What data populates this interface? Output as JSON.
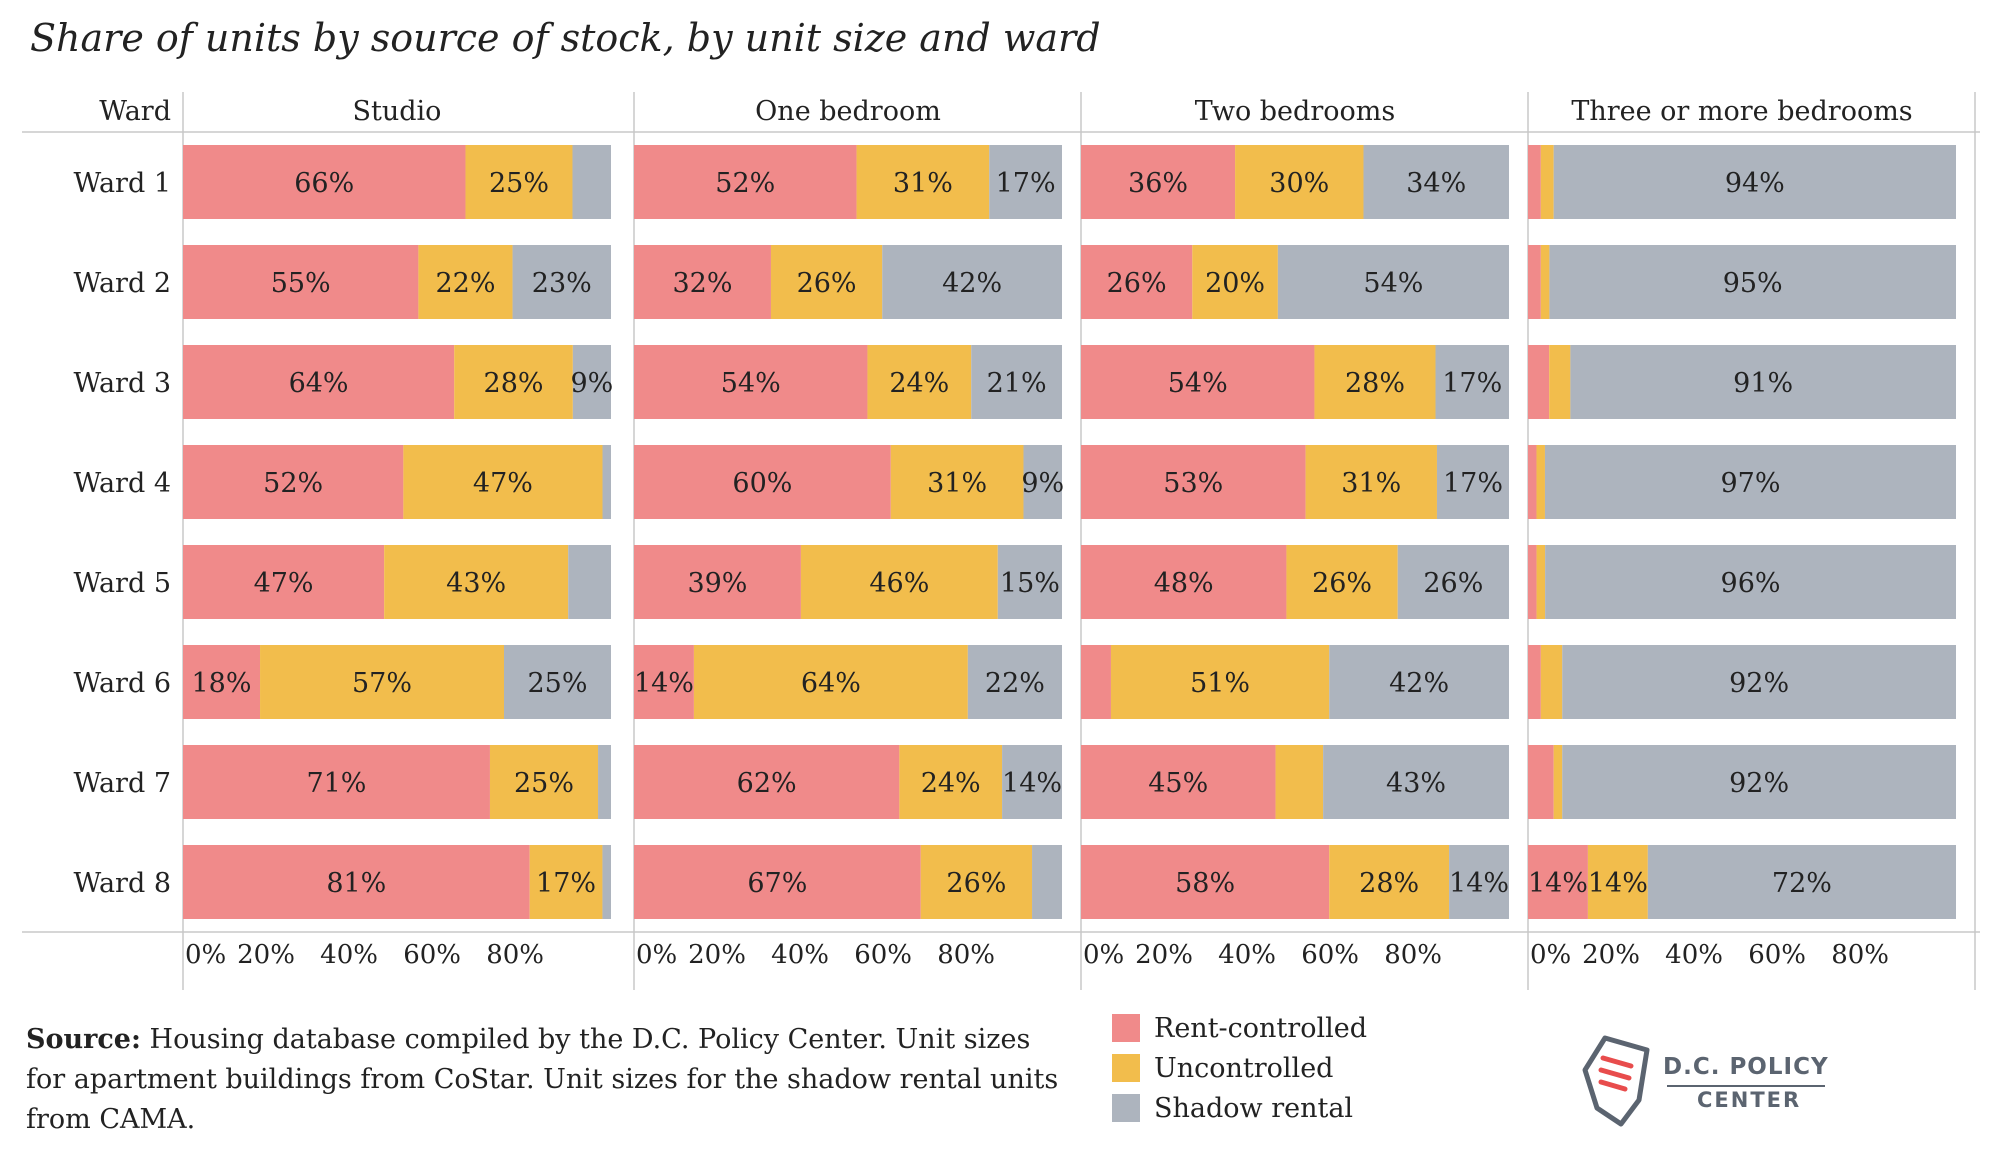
{
  "title": "Share of units by source of stock, by unit size and ward",
  "source_label": "Source:",
  "source_text": "Housing database compiled by the D.C. Policy Center. Unit sizes for apartment buildings from CoStar. Unit sizes for the shadow rental units from CAMA.",
  "logo": {
    "line1": "D.C. POLICY",
    "line2": "CENTER"
  },
  "colors": {
    "rent_controlled": "#f08a8a",
    "uncontrolled": "#f2bd4c",
    "shadow_rental": "#adb4be",
    "rule": "#c8c8c8"
  },
  "legend": [
    {
      "label": "Rent-controlled",
      "color": "#f08a8a"
    },
    {
      "label": "Uncontrolled",
      "color": "#f2bd4c"
    },
    {
      "label": "Shadow rental",
      "color": "#adb4be"
    }
  ],
  "chart_data": {
    "type": "bar",
    "orientation": "horizontal-stacked",
    "row_header": "Ward",
    "categories": [
      "Ward 1",
      "Ward 2",
      "Ward 3",
      "Ward 4",
      "Ward 5",
      "Ward 6",
      "Ward 7",
      "Ward 8"
    ],
    "x_ticks": [
      "0%",
      "20%",
      "40%",
      "60%",
      "80%"
    ],
    "xlim": [
      0,
      100
    ],
    "series_names": [
      "Rent-controlled",
      "Uncontrolled",
      "Shadow rental"
    ],
    "panels": [
      {
        "name": "Studio",
        "values": [
          [
            66,
            25,
            9
          ],
          [
            55,
            22,
            23
          ],
          [
            64,
            28,
            9
          ],
          [
            52,
            47,
            2
          ],
          [
            47,
            43,
            10
          ],
          [
            18,
            57,
            25
          ],
          [
            71,
            25,
            3
          ],
          [
            81,
            17,
            2
          ]
        ],
        "labels": [
          [
            "66%",
            "25%",
            ""
          ],
          [
            "55%",
            "22%",
            "23%"
          ],
          [
            "64%",
            "28%",
            "9%"
          ],
          [
            "52%",
            "47%",
            ""
          ],
          [
            "47%",
            "43%",
            ""
          ],
          [
            "18%",
            "57%",
            "25%"
          ],
          [
            "71%",
            "25%",
            ""
          ],
          [
            "81%",
            "17%",
            ""
          ]
        ]
      },
      {
        "name": "One bedroom",
        "values": [
          [
            52,
            31,
            17
          ],
          [
            32,
            26,
            42
          ],
          [
            54,
            24,
            21
          ],
          [
            60,
            31,
            9
          ],
          [
            39,
            46,
            15
          ],
          [
            14,
            64,
            22
          ],
          [
            62,
            24,
            14
          ],
          [
            67,
            26,
            7
          ]
        ],
        "labels": [
          [
            "52%",
            "31%",
            "17%"
          ],
          [
            "32%",
            "26%",
            "42%"
          ],
          [
            "54%",
            "24%",
            "21%"
          ],
          [
            "60%",
            "31%",
            "9%"
          ],
          [
            "39%",
            "46%",
            "15%"
          ],
          [
            "14%",
            "64%",
            "22%"
          ],
          [
            "62%",
            "24%",
            "14%"
          ],
          [
            "67%",
            "26%",
            ""
          ]
        ]
      },
      {
        "name": "Two bedrooms",
        "values": [
          [
            36,
            30,
            34
          ],
          [
            26,
            20,
            54
          ],
          [
            54,
            28,
            17
          ],
          [
            53,
            31,
            17
          ],
          [
            48,
            26,
            26
          ],
          [
            7,
            51,
            42
          ],
          [
            45,
            11,
            43
          ],
          [
            58,
            28,
            14
          ]
        ],
        "labels": [
          [
            "36%",
            "30%",
            "34%"
          ],
          [
            "26%",
            "20%",
            "54%"
          ],
          [
            "54%",
            "28%",
            "17%"
          ],
          [
            "53%",
            "31%",
            "17%"
          ],
          [
            "48%",
            "26%",
            "26%"
          ],
          [
            "",
            "51%",
            "42%"
          ],
          [
            "45%",
            "",
            "43%"
          ],
          [
            "58%",
            "28%",
            "14%"
          ]
        ]
      },
      {
        "name": "Three or more bedrooms",
        "values": [
          [
            3,
            3,
            94
          ],
          [
            3,
            2,
            95
          ],
          [
            5,
            5,
            91
          ],
          [
            2,
            2,
            97
          ],
          [
            2,
            2,
            96
          ],
          [
            3,
            5,
            92
          ],
          [
            6,
            2,
            92
          ],
          [
            14,
            14,
            72
          ]
        ],
        "labels": [
          [
            "",
            "",
            "94%"
          ],
          [
            "",
            "",
            "95%"
          ],
          [
            "",
            "",
            "91%"
          ],
          [
            "",
            "",
            "97%"
          ],
          [
            "",
            "",
            "96%"
          ],
          [
            "",
            "",
            "92%"
          ],
          [
            "",
            "",
            "92%"
          ],
          [
            "14%",
            "14%",
            "72%"
          ]
        ]
      }
    ]
  }
}
